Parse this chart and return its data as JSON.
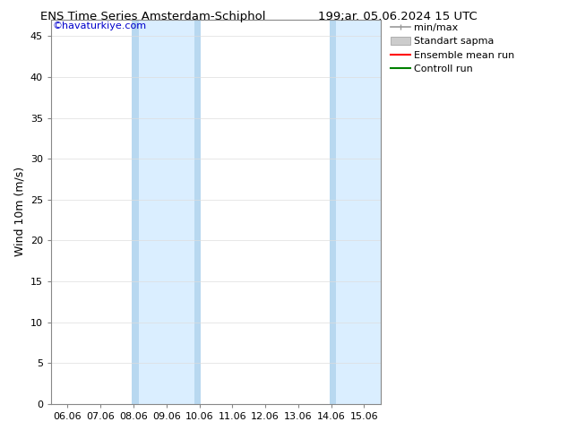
{
  "title_left": "ENS Time Series Amsterdam-Schiphol",
  "title_right": "199;ar. 05.06.2024 15 UTC",
  "ylabel": "Wind 10m (m/s)",
  "copyright": "©havaturkiye.com",
  "copyright_color": "#0000cc",
  "ylim": [
    0,
    47
  ],
  "yticks": [
    0,
    5,
    10,
    15,
    20,
    25,
    30,
    35,
    40,
    45
  ],
  "xtick_labels": [
    "06.06",
    "07.06",
    "08.06",
    "09.06",
    "10.06",
    "11.06",
    "12.06",
    "13.06",
    "14.06",
    "15.06"
  ],
  "xtick_positions": [
    0,
    1,
    2,
    3,
    4,
    5,
    6,
    7,
    8,
    9
  ],
  "xlim": [
    -0.5,
    9.5
  ],
  "shade_bands": [
    {
      "xmin": 1.95,
      "xmax": 2.15,
      "color": "#b8d8f0"
    },
    {
      "xmin": 2.15,
      "xmax": 3.85,
      "color": "#daeeff"
    },
    {
      "xmin": 3.85,
      "xmax": 4.05,
      "color": "#b8d8f0"
    },
    {
      "xmin": 7.95,
      "xmax": 8.15,
      "color": "#b8d8f0"
    },
    {
      "xmin": 8.15,
      "xmax": 9.5,
      "color": "#daeeff"
    }
  ],
  "legend_labels": [
    "min/max",
    "Standart sapma",
    "Ensemble mean run",
    "Controll run"
  ],
  "legend_line_colors": [
    "#aaaaaa",
    "#cccccc",
    "#ff0000",
    "#008000"
  ],
  "bg_color": "#ffffff",
  "plot_bg_color": "#ffffff",
  "grid_color": "#dddddd",
  "title_fontsize": 9.5,
  "tick_fontsize": 8,
  "ylabel_fontsize": 9,
  "legend_fontsize": 8
}
